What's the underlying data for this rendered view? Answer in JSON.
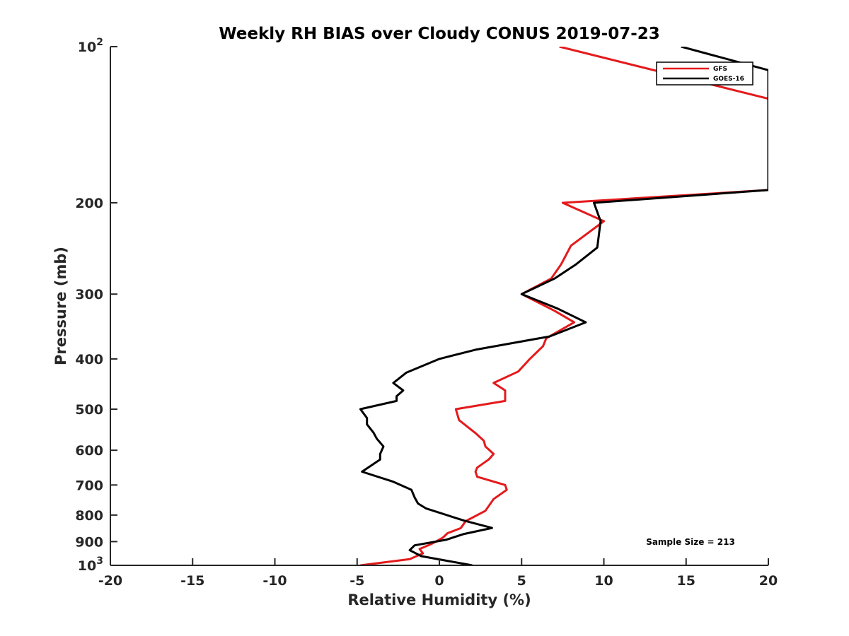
{
  "chart_data": {
    "type": "line",
    "title": "Weekly RH BIAS over Cloudy CONUS 2019-07-23",
    "xlabel": "Relative Humidity (%)",
    "ylabel": "Pressure (mb)",
    "xlim": [
      -20,
      20
    ],
    "ylim": [
      100,
      1000
    ],
    "y_scale": "log",
    "y_reversed": true,
    "grid": false,
    "legend_position": "top-right",
    "x_ticks": [
      {
        "value": -20,
        "label": "-20"
      },
      {
        "value": -15,
        "label": "-15"
      },
      {
        "value": -10,
        "label": "-10"
      },
      {
        "value": -5,
        "label": "-5"
      },
      {
        "value": 0,
        "label": "0"
      },
      {
        "value": 5,
        "label": "5"
      },
      {
        "value": 10,
        "label": "10"
      },
      {
        "value": 15,
        "label": "15"
      },
      {
        "value": 20,
        "label": "20"
      }
    ],
    "y_ticks": [
      {
        "value": 100,
        "base": "10",
        "exp": "2"
      },
      {
        "value": 200,
        "label": "200"
      },
      {
        "value": 300,
        "label": "300"
      },
      {
        "value": 400,
        "label": "400"
      },
      {
        "value": 500,
        "label": "500"
      },
      {
        "value": 600,
        "label": "600"
      },
      {
        "value": 700,
        "label": "700"
      },
      {
        "value": 800,
        "label": "800"
      },
      {
        "value": 900,
        "label": "900"
      },
      {
        "value": 1000,
        "base": "10",
        "exp": "3"
      }
    ],
    "series": [
      {
        "name": "GFS",
        "color": "#e41a1c",
        "points": [
          [
            7.3,
            100
          ],
          [
            20,
            126
          ],
          [
            20,
            189
          ],
          [
            7.5,
            200
          ],
          [
            10,
            217
          ],
          [
            8.0,
            242
          ],
          [
            7.4,
            263
          ],
          [
            6.8,
            280
          ],
          [
            5.0,
            300
          ],
          [
            7.0,
            323
          ],
          [
            8.2,
            340
          ],
          [
            6.5,
            365
          ],
          [
            6.3,
            378
          ],
          [
            5.5,
            400
          ],
          [
            4.8,
            423
          ],
          [
            3.3,
            445
          ],
          [
            4.0,
            460
          ],
          [
            4.0,
            482
          ],
          [
            1.0,
            500
          ],
          [
            1.2,
            525
          ],
          [
            2.2,
            556
          ],
          [
            2.7,
            575
          ],
          [
            2.8,
            590
          ],
          [
            3.3,
            610
          ],
          [
            3.0,
            625
          ],
          [
            2.3,
            648
          ],
          [
            2.2,
            660
          ],
          [
            2.3,
            675
          ],
          [
            4.0,
            700
          ],
          [
            4.1,
            715
          ],
          [
            3.3,
            745
          ],
          [
            2.8,
            785
          ],
          [
            1.6,
            822
          ],
          [
            1.3,
            848
          ],
          [
            0.5,
            867
          ],
          [
            0.2,
            885
          ],
          [
            -0.5,
            910
          ],
          [
            -1.2,
            930
          ],
          [
            -1.0,
            948
          ],
          [
            -1.8,
            973
          ],
          [
            -4.8,
            1000
          ]
        ]
      },
      {
        "name": "GOES-16",
        "color": "#000000",
        "points": [
          [
            14.7,
            100
          ],
          [
            20,
            111
          ],
          [
            20,
            189
          ],
          [
            9.4,
            200
          ],
          [
            9.8,
            217
          ],
          [
            9.6,
            244
          ],
          [
            8.3,
            263
          ],
          [
            7.0,
            280
          ],
          [
            5.0,
            300
          ],
          [
            7.2,
            320
          ],
          [
            8.9,
            340
          ],
          [
            6.7,
            362
          ],
          [
            2.2,
            384
          ],
          [
            0.0,
            400
          ],
          [
            -2.0,
            425
          ],
          [
            -2.8,
            445
          ],
          [
            -2.2,
            460
          ],
          [
            -2.6,
            472
          ],
          [
            -2.6,
            482
          ],
          [
            -4.8,
            500
          ],
          [
            -4.4,
            520
          ],
          [
            -4.4,
            535
          ],
          [
            -4.0,
            555
          ],
          [
            -3.8,
            570
          ],
          [
            -3.4,
            590
          ],
          [
            -3.6,
            610
          ],
          [
            -3.6,
            625
          ],
          [
            -4.7,
            660
          ],
          [
            -2.8,
            690
          ],
          [
            -1.7,
            715
          ],
          [
            -1.5,
            740
          ],
          [
            -1.3,
            760
          ],
          [
            -0.8,
            777
          ],
          [
            1.5,
            820
          ],
          [
            3.2,
            847
          ],
          [
            1.5,
            870
          ],
          [
            0.4,
            893
          ],
          [
            -1.5,
            915
          ],
          [
            -1.8,
            935
          ],
          [
            -1.1,
            960
          ],
          [
            0.3,
            978
          ],
          [
            2.0,
            1000
          ]
        ]
      }
    ],
    "annotations": [
      "Sample Size = 213"
    ]
  }
}
